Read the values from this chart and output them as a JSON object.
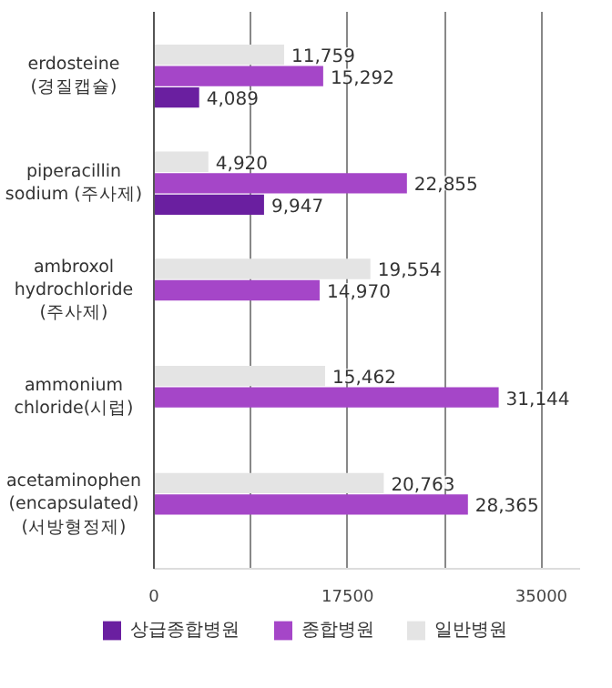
{
  "chart_data": {
    "type": "bar",
    "orientation": "horizontal",
    "categories": [
      "erdosteine\n(경질캡슐)",
      "piperacillin\nsodium (주사제)",
      "ambroxol\nhydrochloride\n(주사제)",
      "ammonium\nchloride(시럽)",
      "acetaminophen\n(encapsulated)\n(서방형정제)"
    ],
    "series": [
      {
        "name": "상급종합병원",
        "color": "#6a1fa0",
        "values": [
          4089,
          9947,
          null,
          null,
          null
        ],
        "value_labels": [
          "4,089",
          "9,947",
          null,
          null,
          null
        ]
      },
      {
        "name": "종합병원",
        "color": "#a546c8",
        "values": [
          15292,
          22855,
          14970,
          31144,
          28365
        ],
        "value_labels": [
          "15,292",
          "22,855",
          "14,970",
          "31,144",
          "28,365"
        ]
      },
      {
        "name": "일반병원",
        "color": "#e4e4e4",
        "values": [
          11759,
          4920,
          19554,
          15462,
          20763
        ],
        "value_labels": [
          "11,759",
          "4,920",
          "19,554",
          "15,462",
          "20,763"
        ]
      }
    ],
    "xlim": [
      0,
      38500
    ],
    "xticks": [
      0,
      {
        "value": 8750,
        "label": null
      },
      17500,
      {
        "value": 26250,
        "label": null
      },
      35000
    ],
    "grid": "x",
    "legend": "bottom"
  }
}
